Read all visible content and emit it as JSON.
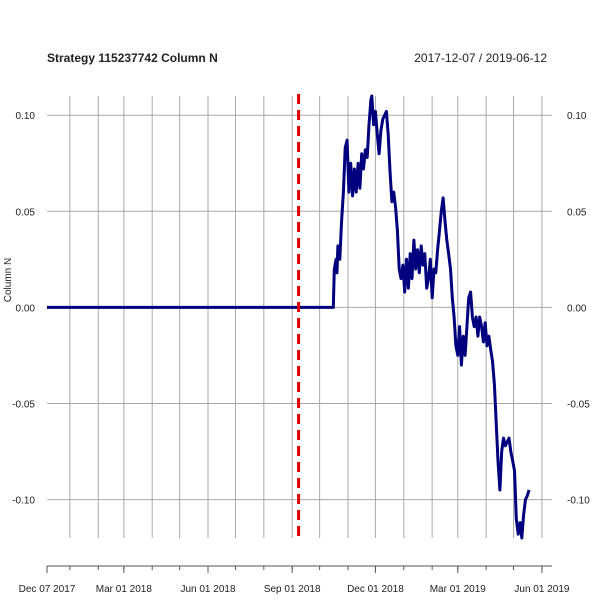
{
  "chart_data": {
    "type": "line",
    "title": "Strategy 115237742 Column N",
    "date_range": "2017-12-07 / 2019-06-12",
    "xlabel": "",
    "ylabel": "Column N",
    "x_start": "2017-12-07",
    "x_end": "2019-06-12",
    "ylim": [
      -0.12,
      0.11
    ],
    "y_ticks": [
      -0.1,
      -0.05,
      0.0,
      0.05,
      0.1
    ],
    "y_tick_labels": [
      "-0.10",
      "-0.05",
      "0.00",
      "0.05",
      "0.10"
    ],
    "x_tick_labels": [
      "Dec 07 2017",
      "Mar 01 2018",
      "Jun 01 2018",
      "Sep 01 2018",
      "Dec 01 2018",
      "Mar 01 2019",
      "Jun 01 2019"
    ],
    "x_tick_dates": [
      "2017-12-07",
      "2018-03-01",
      "2018-06-01",
      "2018-09-01",
      "2018-12-01",
      "2019-03-01",
      "2019-06-01"
    ],
    "grid": true,
    "vline": {
      "date": "2018-09-08",
      "color": "#dd0000",
      "style": "dashed"
    },
    "series": [
      {
        "color": "#00007f",
        "points": [
          [
            "2017-12-07",
            0.0
          ],
          [
            "2018-10-13",
            0.0
          ],
          [
            "2018-10-16",
            0.0
          ],
          [
            "2018-10-17",
            0.02
          ],
          [
            "2018-10-19",
            0.025
          ],
          [
            "2018-10-20",
            0.018
          ],
          [
            "2018-10-21",
            0.032
          ],
          [
            "2018-10-23",
            0.025
          ],
          [
            "2018-10-25",
            0.045
          ],
          [
            "2018-10-27",
            0.06
          ],
          [
            "2018-10-29",
            0.083
          ],
          [
            "2018-10-31",
            0.087
          ],
          [
            "2018-11-02",
            0.06
          ],
          [
            "2018-11-04",
            0.075
          ],
          [
            "2018-11-06",
            0.058
          ],
          [
            "2018-11-08",
            0.072
          ],
          [
            "2018-11-10",
            0.06
          ],
          [
            "2018-11-12",
            0.075
          ],
          [
            "2018-11-14",
            0.062
          ],
          [
            "2018-11-16",
            0.08
          ],
          [
            "2018-11-18",
            0.072
          ],
          [
            "2018-11-20",
            0.082
          ],
          [
            "2018-11-22",
            0.078
          ],
          [
            "2018-11-24",
            0.095
          ],
          [
            "2018-11-26",
            0.108
          ],
          [
            "2018-11-27",
            0.11
          ],
          [
            "2018-11-29",
            0.095
          ],
          [
            "2018-12-01",
            0.102
          ],
          [
            "2018-12-03",
            0.09
          ],
          [
            "2018-12-05",
            0.08
          ],
          [
            "2018-12-07",
            0.092
          ],
          [
            "2018-12-09",
            0.098
          ],
          [
            "2018-12-11",
            0.1
          ],
          [
            "2018-12-13",
            0.102
          ],
          [
            "2018-12-15",
            0.09
          ],
          [
            "2018-12-17",
            0.07
          ],
          [
            "2018-12-19",
            0.055
          ],
          [
            "2018-12-21",
            0.06
          ],
          [
            "2018-12-23",
            0.052
          ],
          [
            "2018-12-25",
            0.04
          ],
          [
            "2018-12-27",
            0.02
          ],
          [
            "2018-12-29",
            0.015
          ],
          [
            "2018-12-31",
            0.022
          ],
          [
            "2019-01-02",
            0.008
          ],
          [
            "2019-01-04",
            0.025
          ],
          [
            "2019-01-06",
            0.01
          ],
          [
            "2019-01-08",
            0.028
          ],
          [
            "2019-01-10",
            0.015
          ],
          [
            "2019-01-12",
            0.035
          ],
          [
            "2019-01-14",
            0.02
          ],
          [
            "2019-01-16",
            0.03
          ],
          [
            "2019-01-18",
            0.018
          ],
          [
            "2019-01-20",
            0.032
          ],
          [
            "2019-01-22",
            0.022
          ],
          [
            "2019-01-24",
            0.028
          ],
          [
            "2019-01-26",
            0.01
          ],
          [
            "2019-01-28",
            0.015
          ],
          [
            "2019-01-30",
            0.025
          ],
          [
            "2019-02-01",
            0.005
          ],
          [
            "2019-02-03",
            0.02
          ],
          [
            "2019-02-05",
            0.018
          ],
          [
            "2019-02-07",
            0.03
          ],
          [
            "2019-02-09",
            0.04
          ],
          [
            "2019-02-11",
            0.05
          ],
          [
            "2019-02-13",
            0.057
          ],
          [
            "2019-02-15",
            0.045
          ],
          [
            "2019-02-17",
            0.035
          ],
          [
            "2019-02-19",
            0.028
          ],
          [
            "2019-02-21",
            0.02
          ],
          [
            "2019-02-23",
            0.005
          ],
          [
            "2019-02-25",
            -0.005
          ],
          [
            "2019-02-27",
            -0.02
          ],
          [
            "2019-03-01",
            -0.025
          ],
          [
            "2019-03-03",
            -0.01
          ],
          [
            "2019-03-05",
            -0.03
          ],
          [
            "2019-03-07",
            -0.015
          ],
          [
            "2019-03-09",
            -0.025
          ],
          [
            "2019-03-11",
            -0.01
          ],
          [
            "2019-03-13",
            0.005
          ],
          [
            "2019-03-15",
            0.008
          ],
          [
            "2019-03-17",
            -0.005
          ],
          [
            "2019-03-19",
            -0.01
          ],
          [
            "2019-03-21",
            -0.005
          ],
          [
            "2019-03-23",
            -0.015
          ],
          [
            "2019-03-25",
            -0.005
          ],
          [
            "2019-03-27",
            -0.01
          ],
          [
            "2019-03-29",
            -0.018
          ],
          [
            "2019-03-31",
            -0.008
          ],
          [
            "2019-04-02",
            -0.02
          ],
          [
            "2019-04-04",
            -0.015
          ],
          [
            "2019-04-06",
            -0.022
          ],
          [
            "2019-04-08",
            -0.028
          ],
          [
            "2019-04-10",
            -0.04
          ],
          [
            "2019-04-12",
            -0.06
          ],
          [
            "2019-04-14",
            -0.08
          ],
          [
            "2019-04-16",
            -0.095
          ],
          [
            "2019-04-18",
            -0.075
          ],
          [
            "2019-04-20",
            -0.068
          ],
          [
            "2019-04-22",
            -0.072
          ],
          [
            "2019-04-24",
            -0.07
          ],
          [
            "2019-04-26",
            -0.068
          ],
          [
            "2019-04-28",
            -0.075
          ],
          [
            "2019-04-30",
            -0.08
          ],
          [
            "2019-05-02",
            -0.085
          ],
          [
            "2019-05-04",
            -0.11
          ],
          [
            "2019-05-06",
            -0.118
          ],
          [
            "2019-05-08",
            -0.112
          ],
          [
            "2019-05-10",
            -0.12
          ],
          [
            "2019-05-12",
            -0.108
          ],
          [
            "2019-05-14",
            -0.1
          ],
          [
            "2019-05-16",
            -0.098
          ],
          [
            "2019-05-18",
            -0.095
          ]
        ]
      }
    ]
  }
}
